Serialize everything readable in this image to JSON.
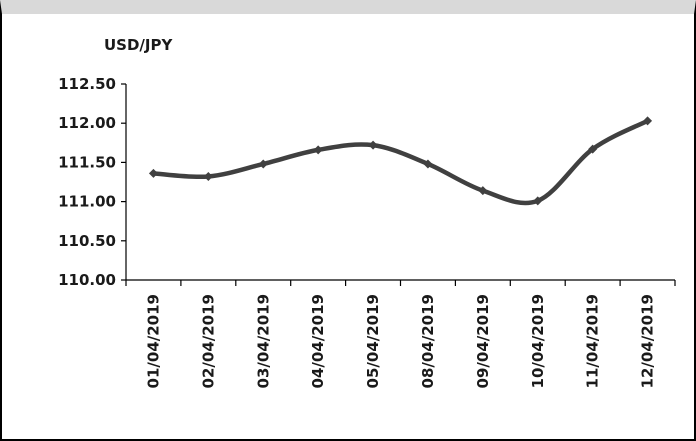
{
  "chart_data": {
    "type": "line",
    "title": "",
    "ylabel": "USD/JPY",
    "xlabel": "",
    "categories": [
      "01/04/2019",
      "02/04/2019",
      "03/04/2019",
      "04/04/2019",
      "05/04/2019",
      "08/04/2019",
      "09/04/2019",
      "10/04/2019",
      "11/04/2019",
      "12/04/2019"
    ],
    "series": [
      {
        "values": [
          111.36,
          111.32,
          111.48,
          111.66,
          111.72,
          111.48,
          111.14,
          111.01,
          111.67,
          112.03
        ]
      }
    ],
    "ylim": [
      110.0,
      112.5
    ],
    "yticks": [
      110.0,
      110.5,
      111.0,
      111.5,
      112.0,
      112.5
    ],
    "ytick_labels": [
      "110.00",
      "110.50",
      "111.00",
      "111.50",
      "112.00",
      "112.50"
    ],
    "grid": false,
    "legend": "none",
    "colors": {
      "line": "#404040",
      "marker": "#404040",
      "axis": "#000000",
      "top_band": "#d9d9d9"
    }
  }
}
